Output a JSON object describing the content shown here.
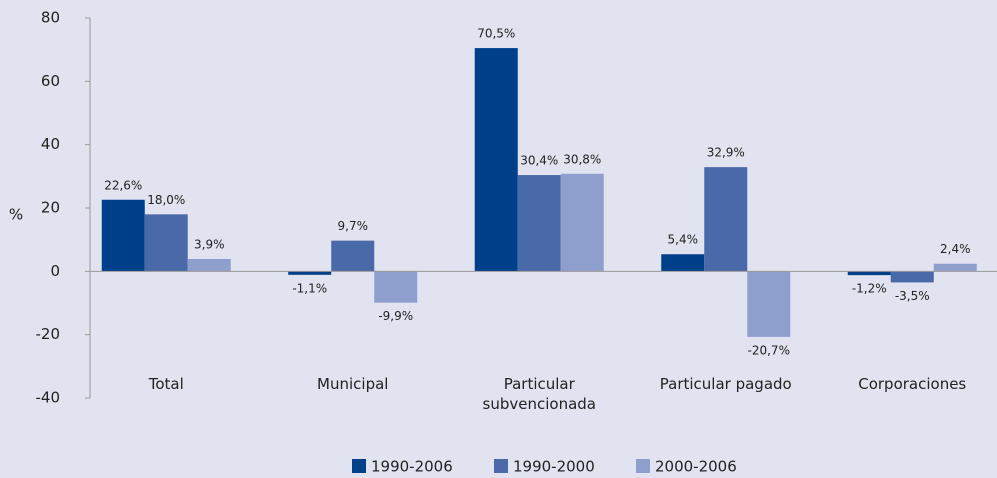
{
  "chart_data": {
    "type": "bar",
    "y_label": "%",
    "categories": [
      "Total",
      "Municipal",
      "Particular subvencionada",
      "Particular pagado",
      "Corporaciones"
    ],
    "series": [
      {
        "name": "1990-2006",
        "color": "#003f8a",
        "values": [
          22.6,
          -1.1,
          70.5,
          5.4,
          -1.2
        ],
        "value_labels": [
          "22,6%",
          "-1,1%",
          "70,5%",
          "5,4%",
          "-1,2%"
        ]
      },
      {
        "name": "1990-2000",
        "color": "#4a69a9",
        "values": [
          18.0,
          9.7,
          30.4,
          32.9,
          -3.5
        ],
        "value_labels": [
          "18,0%",
          "9,7%",
          "30,4%",
          "32,9%",
          "-3,5%"
        ]
      },
      {
        "name": "2000-2006",
        "color": "#8f9fcd",
        "values": [
          3.9,
          -9.9,
          30.8,
          -20.7,
          2.4
        ],
        "value_labels": [
          "3,9%",
          "-9,9%",
          "30,8%",
          "-20,7%",
          "2,4%"
        ]
      }
    ],
    "ylim": [
      -40,
      80
    ],
    "yticks": [
      -40,
      -20,
      0,
      20,
      40,
      60,
      80
    ],
    "grid": false,
    "legend": "bottom"
  }
}
